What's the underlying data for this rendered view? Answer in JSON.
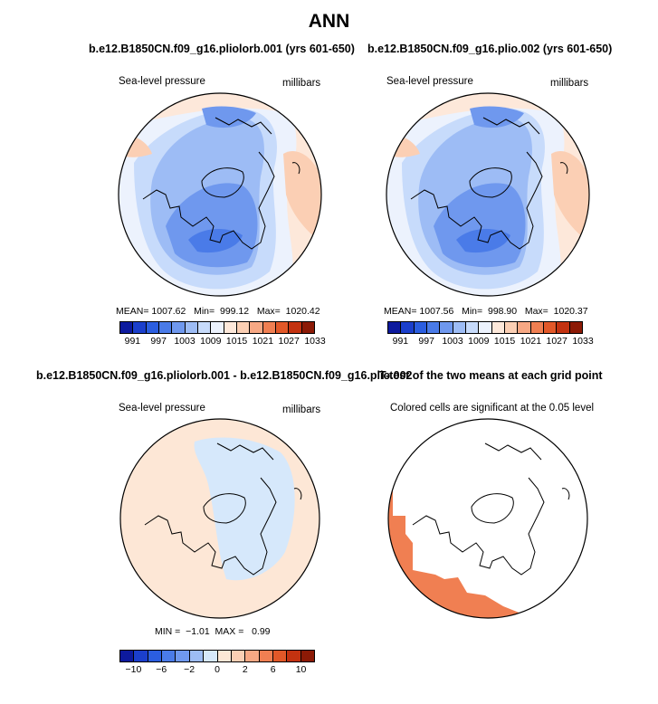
{
  "title": "ANN",
  "palette_slp": [
    "#0d1a9e",
    "#1b3fcc",
    "#2b5ee0",
    "#4a7be8",
    "#6f98ee",
    "#9dbcf5",
    "#c7dbfb",
    "#ecf2fd",
    "#fde8da",
    "#fbcfb4",
    "#f7a884",
    "#f07f52",
    "#e25828",
    "#c33210",
    "#8c1a06"
  ],
  "palette_diff": [
    "#0d1a9e",
    "#1b3fcc",
    "#2b5ee0",
    "#4a7be8",
    "#6f98ee",
    "#9dbcf5",
    "#d6e8fb",
    "#fde7d6",
    "#fbcfb4",
    "#f7a884",
    "#f07f52",
    "#e25828",
    "#c33210",
    "#8c1a06"
  ],
  "panels": [
    {
      "title": "b.e12.B1850CN.f09_g16.pliolorb.001 (yrs 601-650)",
      "left_label": "Sea-level pressure",
      "right_label": "millibars",
      "stats": "MEAN= 1007.62   Min=  999.12   Max=  1020.42"
    },
    {
      "title": "b.e12.B1850CN.f09_g16.plio.002 (yrs 601-650)",
      "left_label": "Sea-level pressure",
      "right_label": "millibars",
      "stats": "MEAN= 1007.56   Min=  998.90   Max=  1020.37"
    },
    {
      "title": "b.e12.B1850CN.f09_g16.pliolorb.001 - b.e12.B1850CN.f09_g16.plio.002",
      "left_label": "Sea-level pressure",
      "right_label": "millibars",
      "stats": "MIN =  −1.01  MAX =   0.99"
    },
    {
      "title": "T-test of the two means at each grid point",
      "left_label": "Colored cells are significant at the 0.05 level",
      "right_label": "",
      "stats": ""
    }
  ],
  "chart_data": [
    {
      "type": "heatmap",
      "projection": "north-polar-stereographic",
      "title": "b.e12.B1850CN.f09_g16.pliolorb.001 (yrs 601-650)",
      "variable": "Sea-level pressure",
      "units": "millibars",
      "mean": 1007.62,
      "min": 999.12,
      "max": 1020.42,
      "contour_levels": [
        991,
        994,
        997,
        1000,
        1003,
        1006,
        1009,
        1012,
        1015,
        1018,
        1021,
        1024,
        1027,
        1030,
        1033
      ],
      "colorbar_tick_labels": [
        "991",
        "997",
        "1003",
        "1009",
        "1015",
        "1021",
        "1027",
        "1033"
      ]
    },
    {
      "type": "heatmap",
      "projection": "north-polar-stereographic",
      "title": "b.e12.B1850CN.f09_g16.plio.002 (yrs 601-650)",
      "variable": "Sea-level pressure",
      "units": "millibars",
      "mean": 1007.56,
      "min": 998.9,
      "max": 1020.37,
      "contour_levels": [
        991,
        994,
        997,
        1000,
        1003,
        1006,
        1009,
        1012,
        1015,
        1018,
        1021,
        1024,
        1027,
        1030,
        1033
      ],
      "colorbar_tick_labels": [
        "991",
        "997",
        "1003",
        "1009",
        "1015",
        "1021",
        "1027",
        "1033"
      ]
    },
    {
      "type": "heatmap",
      "projection": "north-polar-stereographic",
      "title": "b.e12.B1850CN.f09_g16.pliolorb.001 - b.e12.B1850CN.f09_g16.plio.002",
      "variable": "Sea-level pressure",
      "units": "millibars",
      "min": -1.01,
      "max": 0.99,
      "contour_levels": [
        -12,
        -10,
        -8,
        -6,
        -4,
        -2,
        0,
        2,
        4,
        6,
        8,
        10,
        12
      ],
      "colorbar_tick_labels": [
        "−10",
        "−6",
        "−2",
        "0",
        "2",
        "6",
        "10"
      ]
    },
    {
      "type": "heatmap",
      "projection": "north-polar-stereographic",
      "title": "T-test of the two means at each grid point",
      "note": "Colored cells are significant at the 0.05 level",
      "significance_level": 0.05
    }
  ]
}
